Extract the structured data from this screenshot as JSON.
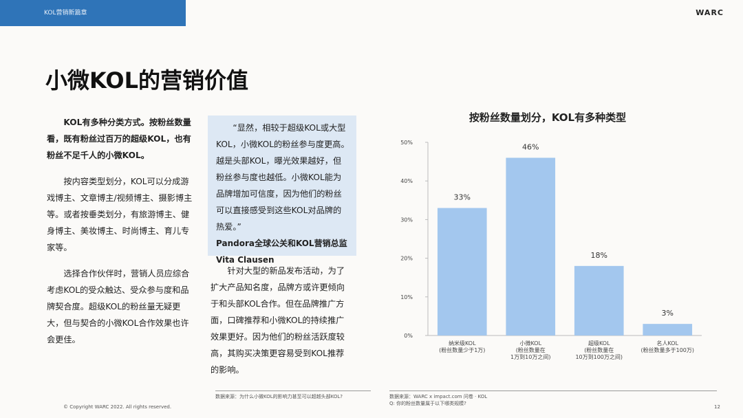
{
  "header": {
    "tab": "KOL营销新篇章",
    "brand": "WARC"
  },
  "title": "小微KOL的营销价值",
  "column1": {
    "paragraphs": [
      "KOL有多种分类方式。按粉丝数量看，既有粉丝过百万的超级KOL，也有粉丝不足千人的小微KOL。",
      "按内容类型划分，KOL可以分成游戏博主、文章博主/视频博主、摄影博主等。或者按垂类划分，有旅游博主、健身博主、美妆博主、时尚博主、育儿专家等。",
      "选择合作伙伴时，营销人员应综合考虑KOL的受众触达、受众参与度和品牌契合度。超级KOL的粉丝量无疑更大，但与契合的小微KOL合作效果也许会更佳。"
    ]
  },
  "quote": {
    "text": "“显然，相较于超级KOL或大型KOL，小微KOL的粉丝参与度更高。越是头部KOL，曝光效果越好，但粉丝参与度也越低。小微KOL能为品牌增加可信度，因为他们的粉丝可以直接感受到这些KOL对品牌的热爱。”",
    "author_title": "Pandora全球公关和KOL营销总监",
    "author_name": "Vita Clausen"
  },
  "column2": {
    "paragraph": "针对大型的新品发布活动，为了扩大产品知名度，品牌方或许更倾向于和头部KOL合作。但在品牌推广方面，口碑推荐和小微KOL的持续推广效果更好。因为他们的粉丝活跃度较高，其购买决策更容易受到KOL推荐的影响。"
  },
  "footer": {
    "copyright": "© Copyright WARC 2022. All rights reserved.",
    "source_left": "数据来源：为什么小微KOL的影响力甚至可以超越头部KOL?",
    "source_right": [
      "数据来源：WARC x impact.com 问卷 · KOL",
      "Q: 你的粉丝数量属于以下哪类规模?"
    ],
    "page": "12"
  },
  "chart_data": {
    "type": "bar",
    "title": "按粉丝数量划分，KOL有多种类型",
    "categories": [
      "纳米级KOL\n(粉丝数量少于1万)",
      "小微KOL\n(粉丝数量在\n1万到10万之间)",
      "超级KOL\n(粉丝数量在\n10万到100万之间)",
      "名人KOL\n(粉丝数量多于100万)"
    ],
    "values": [
      33,
      46,
      18,
      3
    ],
    "value_labels": [
      "33%",
      "46%",
      "18%",
      "3%"
    ],
    "color": "#a3c7ee",
    "ylim": [
      0,
      50
    ],
    "yticks": [
      {
        "value": 0,
        "label": "0%"
      },
      {
        "value": 10,
        "label": "10%"
      },
      {
        "value": 20,
        "label": "20%"
      },
      {
        "value": 30,
        "label": "30%"
      },
      {
        "value": 40,
        "label": "40%"
      },
      {
        "value": 50,
        "label": "50%"
      }
    ],
    "grid": false
  }
}
